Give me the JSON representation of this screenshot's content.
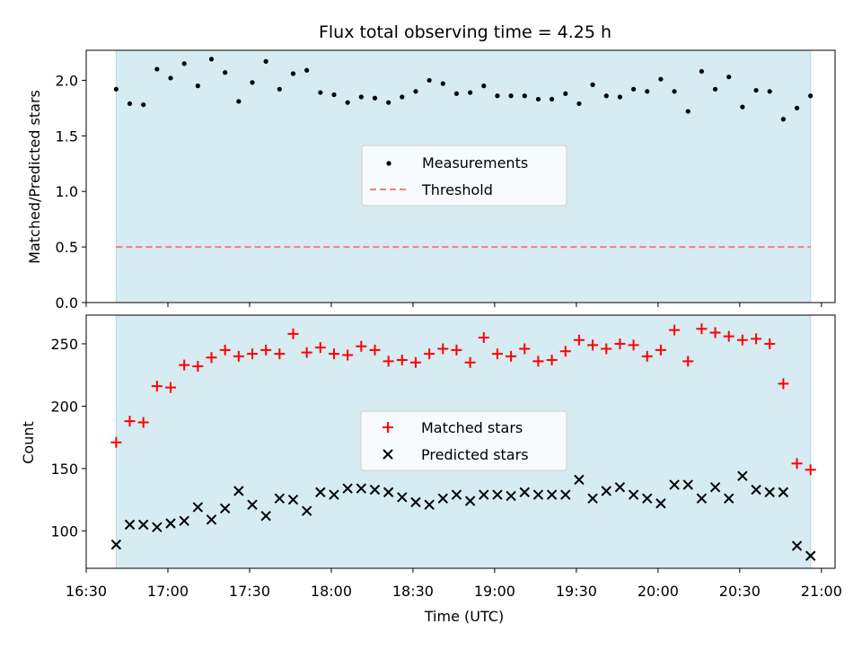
{
  "title": "Flux total observing time = 4.25 h",
  "colors": {
    "band": "#add8e6",
    "measurements": "#000000",
    "threshold": "#f08080",
    "matched": "#ff0000",
    "predicted": "#000000"
  },
  "chart_data": [
    {
      "type": "scatter",
      "panel": "top",
      "ylabel": "Matched/Predicted stars",
      "ylim": [
        0,
        2.27
      ],
      "yticks": [
        "0.0",
        "0.5",
        "1.0",
        "1.5",
        "2.0"
      ],
      "shaded_x_range": [
        "16:41",
        "20:56"
      ],
      "legend_placement": "center",
      "series": [
        {
          "name": "Measurements",
          "marker": "dot",
          "x": [
            "16:41",
            "16:46",
            "16:51",
            "16:56",
            "17:01",
            "17:06",
            "17:11",
            "17:16",
            "17:21",
            "17:26",
            "17:31",
            "17:36",
            "17:41",
            "17:46",
            "17:51",
            "17:56",
            "18:01",
            "18:06",
            "18:11",
            "18:16",
            "18:21",
            "18:26",
            "18:31",
            "18:36",
            "18:41",
            "18:46",
            "18:51",
            "18:56",
            "19:01",
            "19:06",
            "19:11",
            "19:16",
            "19:21",
            "19:26",
            "19:31",
            "19:36",
            "19:41",
            "19:46",
            "19:51",
            "19:56",
            "20:01",
            "20:06",
            "20:11",
            "20:16",
            "20:21",
            "20:26",
            "20:31",
            "20:36",
            "20:41",
            "20:46",
            "20:51",
            "20:56"
          ],
          "y": [
            1.92,
            1.79,
            1.78,
            2.1,
            2.02,
            2.15,
            1.95,
            2.19,
            2.07,
            1.81,
            1.98,
            2.17,
            1.92,
            2.06,
            2.09,
            1.89,
            1.87,
            1.8,
            1.85,
            1.84,
            1.8,
            1.85,
            1.9,
            2.0,
            1.97,
            1.88,
            1.89,
            1.95,
            1.86,
            1.86,
            1.86,
            1.83,
            1.83,
            1.88,
            1.79,
            1.96,
            1.86,
            1.85,
            1.92,
            1.9,
            2.01,
            1.9,
            1.72,
            2.08,
            1.92,
            2.03,
            1.76,
            1.91,
            1.9,
            1.65,
            1.75,
            1.86
          ]
        },
        {
          "name": "Threshold",
          "style": "dashed",
          "x": [
            "16:41",
            "20:56"
          ],
          "y": [
            0.5,
            0.5
          ]
        }
      ]
    },
    {
      "type": "scatter",
      "panel": "bottom",
      "xlabel": "Time (UTC)",
      "ylabel": "Count",
      "ylim": [
        70,
        273
      ],
      "yticks": [
        "100",
        "150",
        "200",
        "250"
      ],
      "xlim": [
        "16:30",
        "21:05"
      ],
      "xticks": [
        "16:30",
        "17:00",
        "17:30",
        "18:00",
        "18:30",
        "19:00",
        "19:30",
        "20:00",
        "20:30",
        "21:00"
      ],
      "shaded_x_range": [
        "16:41",
        "20:56"
      ],
      "legend_placement": "center",
      "series": [
        {
          "name": "Matched stars",
          "marker": "plus",
          "x": [
            "16:41",
            "16:46",
            "16:51",
            "16:56",
            "17:01",
            "17:06",
            "17:11",
            "17:16",
            "17:21",
            "17:26",
            "17:31",
            "17:36",
            "17:41",
            "17:46",
            "17:51",
            "17:56",
            "18:01",
            "18:06",
            "18:11",
            "18:16",
            "18:21",
            "18:26",
            "18:31",
            "18:36",
            "18:41",
            "18:46",
            "18:51",
            "18:56",
            "19:01",
            "19:06",
            "19:11",
            "19:16",
            "19:21",
            "19:26",
            "19:31",
            "19:36",
            "19:41",
            "19:46",
            "19:51",
            "19:56",
            "20:01",
            "20:06",
            "20:11",
            "20:16",
            "20:21",
            "20:26",
            "20:31",
            "20:36",
            "20:41",
            "20:46",
            "20:51",
            "20:56"
          ],
          "y": [
            171,
            188,
            187,
            216,
            215,
            233,
            232,
            239,
            245,
            240,
            242,
            245,
            242,
            258,
            243,
            247,
            242,
            241,
            248,
            245,
            236,
            237,
            235,
            242,
            246,
            245,
            235,
            255,
            242,
            240,
            246,
            236,
            237,
            244,
            253,
            249,
            246,
            250,
            249,
            240,
            245,
            261,
            236,
            262,
            259,
            256,
            253,
            254,
            250,
            218,
            154,
            149
          ]
        },
        {
          "name": "Predicted stars",
          "marker": "x",
          "x": [
            "16:41",
            "16:46",
            "16:51",
            "16:56",
            "17:01",
            "17:06",
            "17:11",
            "17:16",
            "17:21",
            "17:26",
            "17:31",
            "17:36",
            "17:41",
            "17:46",
            "17:51",
            "17:56",
            "18:01",
            "18:06",
            "18:11",
            "18:16",
            "18:21",
            "18:26",
            "18:31",
            "18:36",
            "18:41",
            "18:46",
            "18:51",
            "18:56",
            "19:01",
            "19:06",
            "19:11",
            "19:16",
            "19:21",
            "19:26",
            "19:31",
            "19:36",
            "19:41",
            "19:46",
            "19:51",
            "19:56",
            "20:01",
            "20:06",
            "20:11",
            "20:16",
            "20:21",
            "20:26",
            "20:31",
            "20:36",
            "20:41",
            "20:46",
            "20:51",
            "20:56"
          ],
          "y": [
            89,
            105,
            105,
            103,
            106,
            108,
            119,
            109,
            118,
            132,
            121,
            112,
            126,
            125,
            116,
            131,
            129,
            134,
            134,
            133,
            131,
            127,
            123,
            121,
            126,
            129,
            124,
            129,
            129,
            128,
            131,
            129,
            129,
            129,
            141,
            126,
            132,
            135,
            129,
            126,
            122,
            137,
            137,
            126,
            135,
            126,
            144,
            133,
            131,
            131,
            88,
            80
          ]
        }
      ]
    }
  ]
}
